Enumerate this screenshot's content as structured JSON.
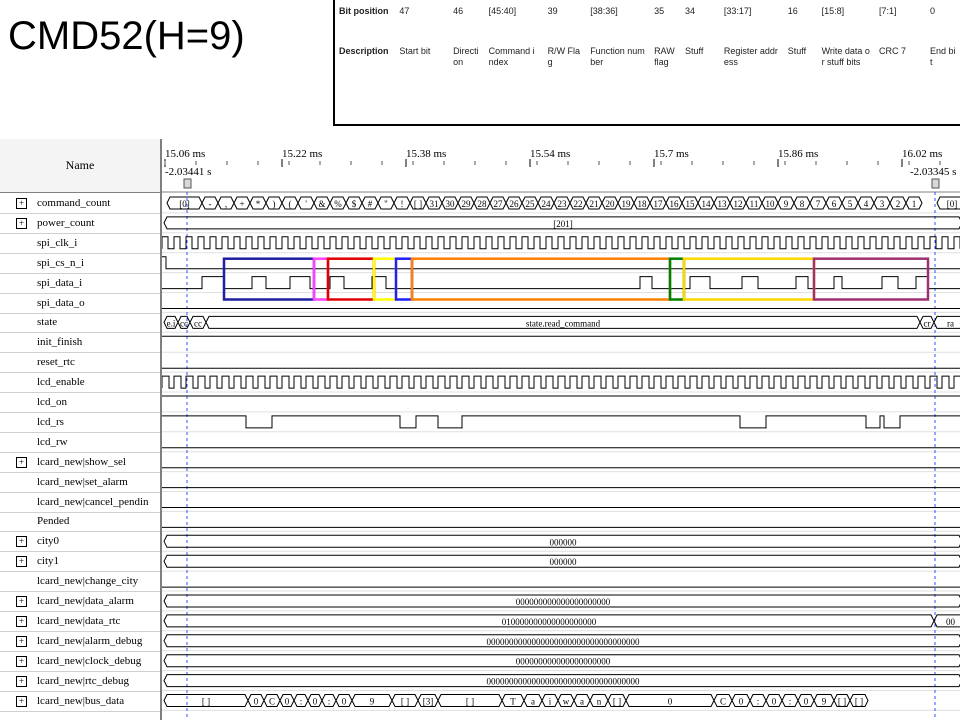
{
  "slide_title": "CMD52(H=9)",
  "bit_table": {
    "headers": [
      "Bit position",
      "47",
      "46",
      "[45:40]",
      "39",
      "[38:36]",
      "35",
      "34",
      "[33:17]",
      "16",
      "[15:8]",
      "[7:1]",
      "0"
    ],
    "descriptions": [
      "Description",
      "Start bit",
      "Direction",
      "Command index",
      "R/W Flag",
      "Function number",
      "RAW flag",
      "Stuff",
      "Register address",
      "Stuff",
      "Write data or stuff bits",
      "CRC 7",
      "End bit"
    ]
  },
  "waveform": {
    "name_header": "Name",
    "time_markers": [
      "15.06 ms",
      "15.22 ms",
      "15.38 ms",
      "15.54 ms",
      "15.7 ms",
      "15.86 ms",
      "16.02 ms"
    ],
    "cursor_left": "-2.03441 s",
    "cursor_right": "-2.03345 s",
    "signals": [
      {
        "name": "command_count",
        "expandable": true
      },
      {
        "name": "power_count",
        "expandable": true
      },
      {
        "name": "spi_clk_i",
        "expandable": false
      },
      {
        "name": "spi_cs_n_i",
        "expandable": false
      },
      {
        "name": "spi_data_i",
        "expandable": false
      },
      {
        "name": "spi_data_o",
        "expandable": false
      },
      {
        "name": "state",
        "expandable": false
      },
      {
        "name": "init_finish",
        "expandable": false
      },
      {
        "name": "reset_rtc",
        "expandable": false
      },
      {
        "name": "lcd_enable",
        "expandable": false
      },
      {
        "name": "lcd_on",
        "expandable": false
      },
      {
        "name": "lcd_rs",
        "expandable": false
      },
      {
        "name": "lcd_rw",
        "expandable": false
      },
      {
        "name": "lcard_new|show_sel",
        "expandable": true
      },
      {
        "name": "lcard_new|set_alarm",
        "expandable": false
      },
      {
        "name": "lcard_new|cancel_pendin",
        "expandable": false
      },
      {
        "name": "Pended",
        "expandable": false
      },
      {
        "name": "city0",
        "expandable": true
      },
      {
        "name": "city1",
        "expandable": true
      },
      {
        "name": "lcard_new|change_city",
        "expandable": false
      },
      {
        "name": "lcard_new|data_alarm",
        "expandable": true
      },
      {
        "name": "lcard_new|data_rtc",
        "expandable": true
      },
      {
        "name": "lcard_new|alarm_debug",
        "expandable": true
      },
      {
        "name": "lcard_new|clock_debug",
        "expandable": true
      },
      {
        "name": "lcard_new|rtc_debug",
        "expandable": true
      },
      {
        "name": "lcard_new|bus_data",
        "expandable": true
      }
    ],
    "command_count_values": [
      "[0]",
      "-",
      ",",
      "+",
      "*",
      ")",
      "(",
      "'",
      "&",
      "%",
      "$",
      "#",
      "\"",
      "!",
      "[ ]",
      "31",
      "30",
      "29",
      "28",
      "27",
      "26",
      "25",
      "24",
      "23",
      "22",
      "21",
      "20",
      "19",
      "18",
      "17",
      "16",
      "15",
      "14",
      "13",
      "12",
      "11",
      "10",
      "9",
      "8",
      "7",
      "6",
      "5",
      "4",
      "3",
      "2",
      "1",
      "[0]"
    ],
    "power_count_value": "[201]",
    "state_left": [
      "e.i",
      "cc",
      "cc"
    ],
    "state_value": "state.read_command",
    "state_right": [
      "cr",
      "ra"
    ],
    "city0_value": "000000",
    "city1_value": "000000",
    "data_alarm_value": "000000000000000000000",
    "data_rtc_value": "010000000000000000000",
    "data_rtc_right": "00",
    "alarm_debug_value": "0000000000000000000000000000000000",
    "clock_debug_value": "000000000000000000000",
    "rtc_debug_value": "0000000000000000000000000000000000",
    "bus_data_values": [
      "[ ]",
      "0",
      "C",
      "0",
      ":",
      "0",
      ":",
      "0",
      "9",
      "[ ]",
      "[3]",
      "[ ]",
      "T",
      "a",
      "i",
      "w",
      "a",
      "n",
      "[ ]",
      "0",
      "C",
      "0",
      ":",
      "0",
      ":",
      "0",
      "9",
      "[ ]",
      "[ ]"
    ],
    "annotation_colors": [
      "#1f1fa0",
      "#ff40ff",
      "#e00000",
      "#ffff00",
      "#2020ff",
      "#ff8000",
      "#008000",
      "#ffd700",
      "#a03070"
    ]
  }
}
